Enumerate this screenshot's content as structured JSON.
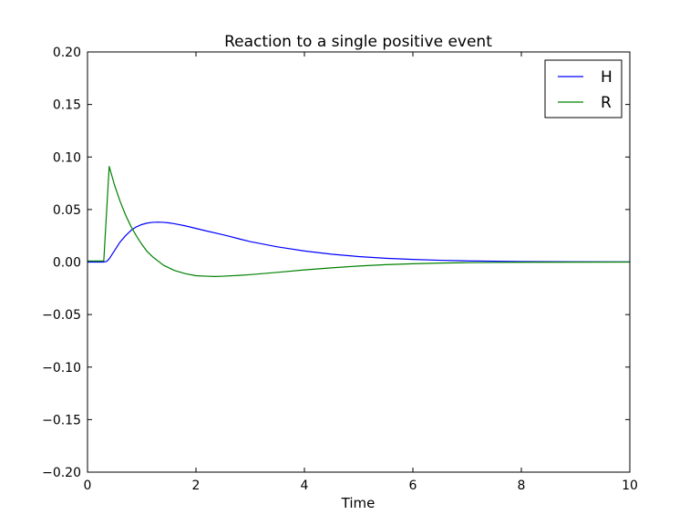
{
  "chart_data": {
    "type": "line",
    "title": "Reaction to a single positive event",
    "xlabel": "Time",
    "ylabel": "",
    "xlim": [
      0,
      10
    ],
    "ylim": [
      -0.2,
      0.2
    ],
    "xticks": [
      0,
      2,
      4,
      6,
      8,
      10
    ],
    "xtick_labels": [
      "0",
      "2",
      "4",
      "6",
      "8",
      "10"
    ],
    "yticks": [
      -0.2,
      -0.15,
      -0.1,
      -0.05,
      0.0,
      0.05,
      0.1,
      0.15,
      0.2
    ],
    "ytick_labels": [
      "−0.20",
      "−0.15",
      "−0.10",
      "−0.05",
      "0.00",
      "0.05",
      "0.10",
      "0.15",
      "0.20"
    ],
    "grid": false,
    "legend_position": "top-right",
    "series": [
      {
        "name": "H",
        "color": "#0000ff",
        "x": [
          0,
          0.3,
          0.35,
          0.4,
          0.5,
          0.6,
          0.7,
          0.8,
          0.9,
          1.0,
          1.1,
          1.2,
          1.3,
          1.4,
          1.5,
          1.6,
          1.8,
          2.0,
          2.2,
          2.5,
          2.8,
          3.0,
          3.5,
          4.0,
          4.5,
          5.0,
          5.5,
          6.0,
          6.5,
          7.0,
          8.0,
          9.0,
          10.0
        ],
        "y": [
          0.0,
          0.0,
          0.0005,
          0.003,
          0.011,
          0.019,
          0.025,
          0.03,
          0.0335,
          0.0357,
          0.0371,
          0.0378,
          0.038,
          0.0378,
          0.0373,
          0.0365,
          0.0345,
          0.032,
          0.0295,
          0.026,
          0.022,
          0.0195,
          0.0145,
          0.0105,
          0.0075,
          0.0052,
          0.0036,
          0.0025,
          0.0017,
          0.0011,
          0.0005,
          0.0002,
          0.0001
        ]
      },
      {
        "name": "R",
        "color": "#008000",
        "x": [
          0,
          0.3,
          0.4,
          0.5,
          0.6,
          0.7,
          0.8,
          0.9,
          1.0,
          1.1,
          1.2,
          1.4,
          1.6,
          1.8,
          2.0,
          2.2,
          2.35,
          2.5,
          2.8,
          3.0,
          3.5,
          4.0,
          4.5,
          5.0,
          5.5,
          6.0,
          6.5,
          7.0,
          7.5,
          8.0,
          9.0,
          10.0
        ],
        "y": [
          0.001,
          0.001,
          0.091,
          0.073,
          0.058,
          0.045,
          0.034,
          0.025,
          0.017,
          0.01,
          0.005,
          -0.003,
          -0.008,
          -0.011,
          -0.013,
          -0.0135,
          -0.0138,
          -0.0135,
          -0.0127,
          -0.012,
          -0.0098,
          -0.0075,
          -0.0055,
          -0.0038,
          -0.0025,
          -0.0016,
          -0.001,
          -0.0006,
          -0.0004,
          -0.0002,
          -0.0001,
          0.0
        ]
      }
    ]
  }
}
